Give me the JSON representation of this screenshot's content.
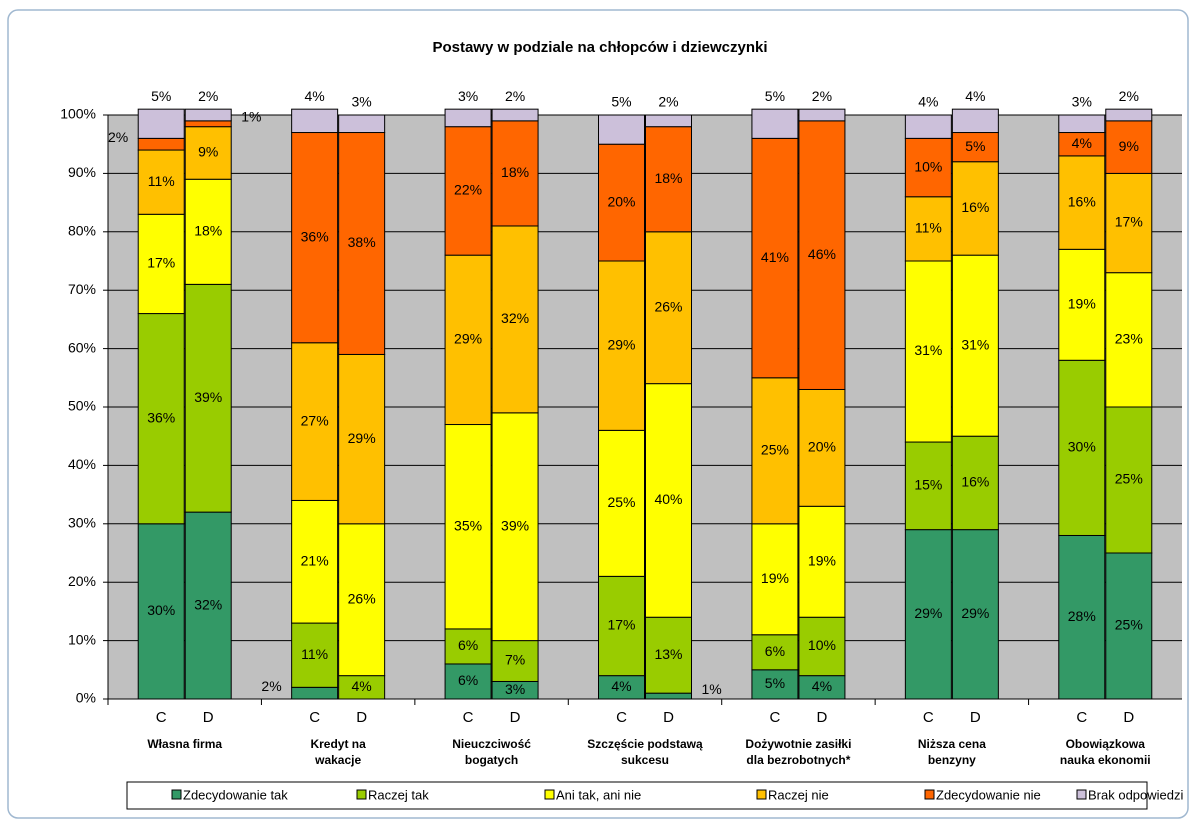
{
  "chart_data": {
    "type": "stacked_bar",
    "title": "Postawy w podziale na chłopców i dziewczynki",
    "groups": [
      [
        "Własna firma"
      ],
      [
        "Kredyt na",
        "wakacje"
      ],
      [
        "Nieuczciwość",
        "bogatych"
      ],
      [
        "Szczęście podstawą",
        "sukcesu"
      ],
      [
        "Dożywotnie zasiłki",
        "dla bezrobotnych*"
      ],
      [
        "Niższa cena",
        "benzyny"
      ],
      [
        "Obowiązkowa",
        "nauka ekonomii"
      ]
    ],
    "subcategories": [
      "C",
      "D"
    ],
    "ylim": [
      0,
      100
    ],
    "yticks": [
      {
        "value": 0,
        "label": "0%"
      },
      {
        "value": 10,
        "label": "10%"
      },
      {
        "value": 20,
        "label": "20%"
      },
      {
        "value": 30,
        "label": "30%"
      },
      {
        "value": 40,
        "label": "40%"
      },
      {
        "value": 50,
        "label": "50%"
      },
      {
        "value": 60,
        "label": "60%"
      },
      {
        "value": 70,
        "label": "70%"
      },
      {
        "value": 80,
        "label": "80%"
      },
      {
        "value": 90,
        "label": "90%"
      },
      {
        "value": 100,
        "label": "100%"
      }
    ],
    "grid": true,
    "legend": "bottom",
    "series": [
      {
        "name": "Zdecydowanie tak",
        "color": "#339966",
        "values": [
          30,
          32,
          2,
          null,
          6,
          3,
          4,
          1,
          5,
          4,
          29,
          29,
          28,
          25
        ],
        "value_labels": [
          "30%",
          "32%",
          "2%",
          null,
          "6%",
          "3%",
          "4%",
          "1%",
          "5%",
          "4%",
          "29%",
          "29%",
          "28%",
          "25%"
        ]
      },
      {
        "name": "Raczej tak",
        "color": "#99cc00",
        "values": [
          36,
          39,
          11,
          4,
          6,
          7,
          17,
          13,
          6,
          10,
          15,
          16,
          30,
          25
        ],
        "value_labels": [
          "36%",
          "39%",
          "11%",
          "4%",
          "6%",
          "7%",
          "17%",
          "13%",
          "6%",
          "10%",
          "15%",
          "16%",
          "30%",
          "25%"
        ]
      },
      {
        "name": "Ani tak, ani nie",
        "color": "#ffff00",
        "values": [
          17,
          18,
          21,
          26,
          35,
          39,
          25,
          40,
          19,
          19,
          31,
          31,
          19,
          23
        ],
        "value_labels": [
          "17%",
          "18%",
          "21%",
          "26%",
          "35%",
          "39%",
          "25%",
          "40%",
          "19%",
          "19%",
          "31%",
          "31%",
          "19%",
          "23%"
        ]
      },
      {
        "name": "Raczej nie",
        "color": "#ffc000",
        "values": [
          11,
          9,
          27,
          29,
          29,
          32,
          29,
          26,
          25,
          20,
          11,
          16,
          16,
          17
        ],
        "value_labels": [
          "11%",
          "9%",
          "27%",
          "29%",
          "29%",
          "32%",
          "29%",
          "26%",
          "25%",
          "20%",
          "11%",
          "16%",
          "16%",
          "17%"
        ]
      },
      {
        "name": "Zdecydowanie nie",
        "color": "#ff6600",
        "values": [
          2,
          1,
          36,
          38,
          22,
          18,
          20,
          18,
          41,
          46,
          10,
          5,
          4,
          9
        ],
        "value_labels": [
          "2%",
          "1%",
          "36%",
          "38%",
          "22%",
          "18%",
          "20%",
          "18%",
          "41%",
          "46%",
          "10%",
          "5%",
          "4%",
          "9%"
        ]
      },
      {
        "name": "Brak odpowiedzi",
        "color": "#ccc0da",
        "values": [
          5,
          2,
          4,
          3,
          3,
          2,
          5,
          2,
          5,
          2,
          4,
          4,
          3,
          2
        ],
        "value_labels": [
          "5%",
          "2%",
          "4%",
          "3%",
          "3%",
          "2%",
          "5%",
          "2%",
          "5%",
          "2%",
          "4%",
          "4%",
          "3%",
          "2%"
        ]
      }
    ]
  }
}
